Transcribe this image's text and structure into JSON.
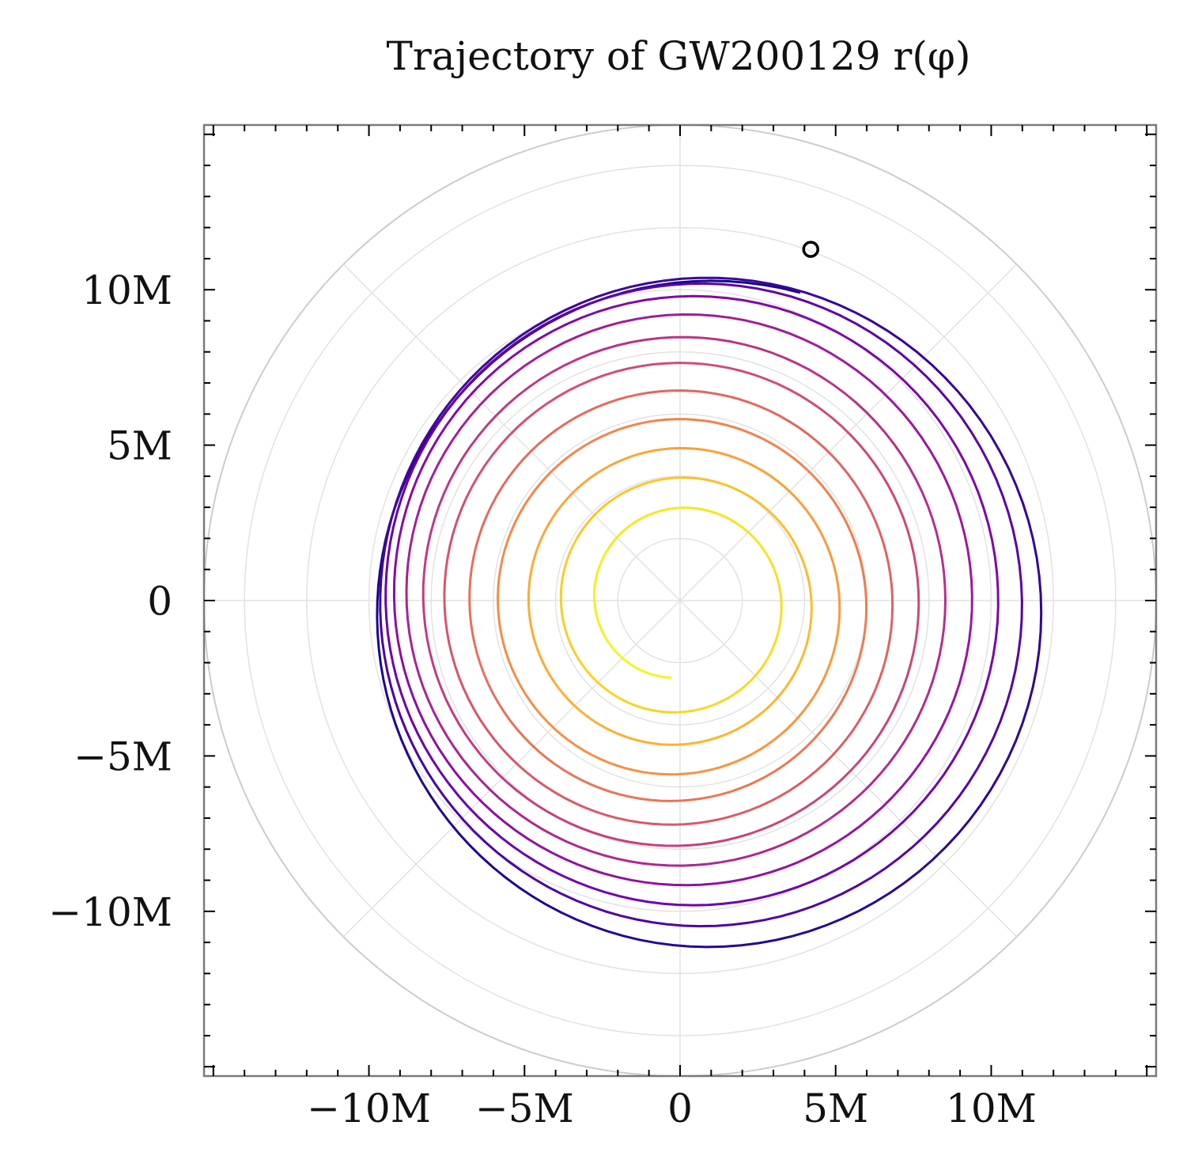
{
  "chart_data": {
    "type": "line",
    "subtype": "polar-trajectory",
    "title": "Trajectory of GW200129 r(φ)",
    "xlabel": "",
    "ylabel": "",
    "xlim": [
      -15.3,
      15.3
    ],
    "ylim": [
      -15.3,
      15.3
    ],
    "x_ticks": [
      {
        "value": -10,
        "label": "−10M"
      },
      {
        "value": -5,
        "label": "−5M"
      },
      {
        "value": 0,
        "label": "0"
      },
      {
        "value": 5,
        "label": "5M"
      },
      {
        "value": 10,
        "label": "10M"
      }
    ],
    "y_ticks": [
      {
        "value": 10,
        "label": "10M"
      },
      {
        "value": 5,
        "label": "5M"
      },
      {
        "value": 0,
        "label": "0"
      },
      {
        "value": -5,
        "label": "−5M"
      },
      {
        "value": -10,
        "label": "−10M"
      }
    ],
    "grid": {
      "polar_circles": [
        2,
        4,
        6,
        8,
        10,
        12,
        14,
        15.3
      ],
      "spokes_deg": [
        0,
        45,
        90,
        135,
        180,
        225,
        270,
        315
      ]
    },
    "colormap": "plasma",
    "colormap_stops": [
      "#0d0887",
      "#46039f",
      "#7201a8",
      "#9c179e",
      "#bd3786",
      "#d8576b",
      "#ed7953",
      "#fb9f3a",
      "#fdca26",
      "#f0f921"
    ],
    "trajectory": {
      "r_start": 11.9,
      "phi_start_deg": 70,
      "r_end": 2.5,
      "phi_end_deg": 83,
      "orbits": 11.5,
      "eccentricity": 0.1,
      "center_offset": [
        0.0,
        -0.6
      ]
    },
    "start_marker": {
      "x": 4.2,
      "y": 11.3
    }
  }
}
